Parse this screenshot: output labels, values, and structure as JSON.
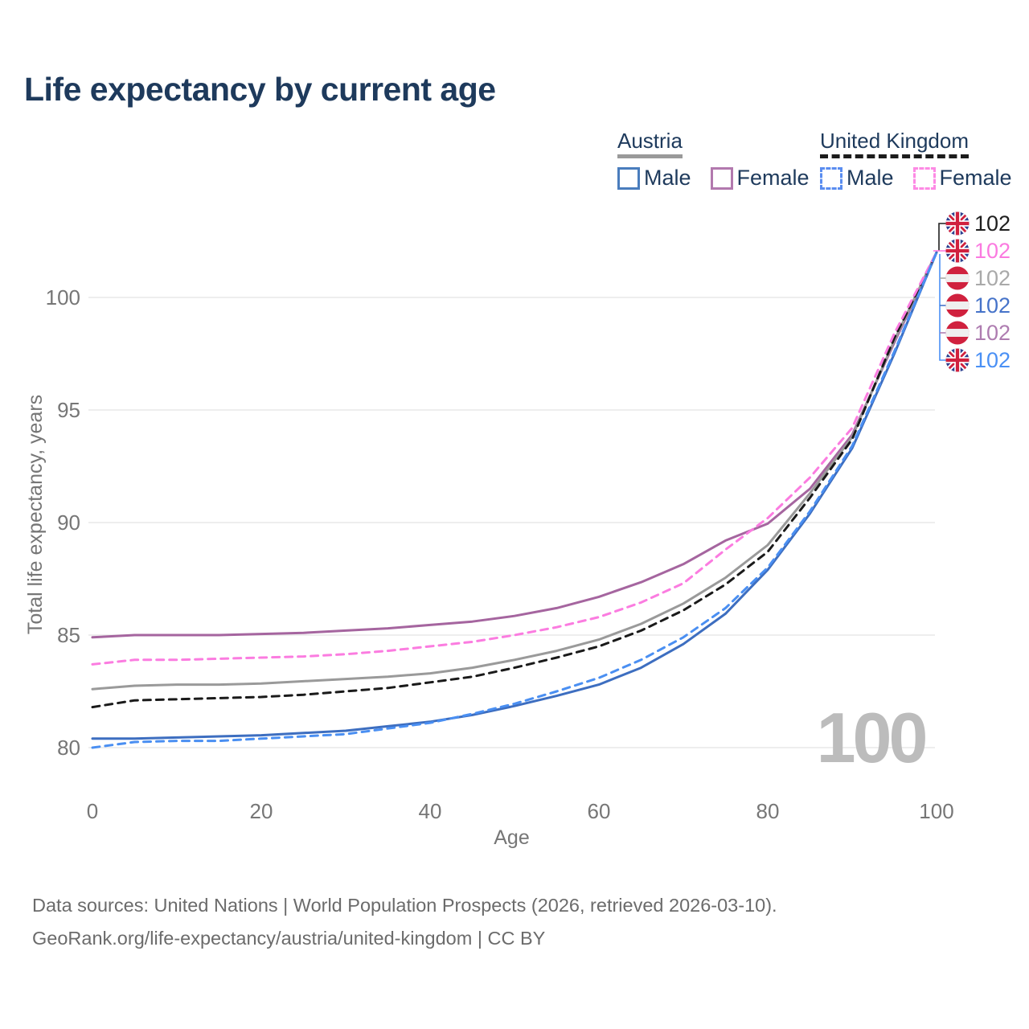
{
  "title": "Life expectancy by current age",
  "legend": {
    "groups": [
      {
        "name": "Austria",
        "line_color": "#9a9a9a",
        "line_style": "solid",
        "items": [
          {
            "label": "Male",
            "color": "#4a7dbd",
            "dashed": false
          },
          {
            "label": "Female",
            "color": "#b279ae",
            "dashed": false
          }
        ]
      },
      {
        "name": "United Kingdom",
        "line_color": "#1c1c1c",
        "line_style": "dashed",
        "items": [
          {
            "label": "Male",
            "color": "#5a8df0",
            "dashed": true
          },
          {
            "label": "Female",
            "color": "#fd8ae4",
            "dashed": true
          }
        ]
      }
    ]
  },
  "chart_data": {
    "type": "line",
    "title": "Life expectancy by current age",
    "xlabel": "Age",
    "ylabel": "Total life expectancy, years",
    "xticks": [
      0,
      20,
      40,
      60,
      80,
      100
    ],
    "yticks": [
      80,
      85,
      90,
      95,
      100
    ],
    "xlim": [
      0,
      100
    ],
    "ylim": [
      79.3,
      103.2
    ],
    "grid": "horizontal",
    "grid_color": "#e9e9e9",
    "tick_color": "#767676",
    "watermark": "100",
    "watermark_color": "#bcbcbc",
    "x": [
      0,
      5,
      10,
      15,
      20,
      25,
      30,
      35,
      40,
      45,
      50,
      55,
      60,
      65,
      70,
      75,
      80,
      85,
      90,
      95,
      100
    ],
    "series": [
      {
        "name": "Austria Female",
        "country": "austria",
        "color": "#a5659f",
        "dashed": false,
        "values": [
          84.9,
          85.0,
          85.0,
          85.0,
          85.05,
          85.1,
          85.2,
          85.3,
          85.45,
          85.6,
          85.85,
          86.2,
          86.7,
          87.35,
          88.15,
          89.2,
          89.95,
          91.5,
          93.9,
          98.0,
          102
        ]
      },
      {
        "name": "Austria Combined",
        "country": "austria",
        "color": "#9a9a9a",
        "dashed": false,
        "values": [
          82.6,
          82.75,
          82.8,
          82.8,
          82.85,
          82.95,
          83.05,
          83.15,
          83.3,
          83.55,
          83.9,
          84.3,
          84.8,
          85.5,
          86.4,
          87.55,
          89.0,
          91.3,
          93.8,
          98.1,
          102
        ]
      },
      {
        "name": "Austria Male",
        "country": "austria",
        "color": "#3d6ec0",
        "dashed": false,
        "values": [
          80.4,
          80.4,
          80.45,
          80.5,
          80.55,
          80.65,
          80.75,
          80.95,
          81.15,
          81.45,
          81.85,
          82.3,
          82.8,
          83.55,
          84.6,
          85.95,
          87.9,
          90.4,
          93.3,
          97.5,
          102
        ]
      },
      {
        "name": "United Kingdom Combined",
        "country": "uk",
        "color": "#1a1a1a",
        "dashed": true,
        "values": [
          81.8,
          82.1,
          82.15,
          82.2,
          82.25,
          82.35,
          82.5,
          82.65,
          82.9,
          83.15,
          83.55,
          84.0,
          84.5,
          85.2,
          86.1,
          87.25,
          88.7,
          91.1,
          93.7,
          98.2,
          102
        ]
      },
      {
        "name": "United Kingdom Female",
        "country": "uk",
        "color": "#fb7ce0",
        "dashed": true,
        "values": [
          83.7,
          83.9,
          83.9,
          83.95,
          84.0,
          84.05,
          84.15,
          84.3,
          84.5,
          84.7,
          85.0,
          85.35,
          85.8,
          86.45,
          87.3,
          88.8,
          90.2,
          92.0,
          94.2,
          98.4,
          102
        ]
      },
      {
        "name": "United Kingdom Male",
        "country": "uk",
        "color": "#4a8ff2",
        "dashed": true,
        "values": [
          80.0,
          80.25,
          80.3,
          80.3,
          80.4,
          80.5,
          80.6,
          80.85,
          81.1,
          81.5,
          81.95,
          82.5,
          83.1,
          83.9,
          84.9,
          86.2,
          88.0,
          90.5,
          93.4,
          97.6,
          102
        ]
      }
    ],
    "end_labels": [
      {
        "flag": "uk",
        "color": "#1f1f1f",
        "value": "102"
      },
      {
        "flag": "uk",
        "color": "#fb7ae0",
        "value": "102"
      },
      {
        "flag": "austria",
        "color": "#a9a9a9",
        "value": "102"
      },
      {
        "flag": "austria",
        "color": "#4673c9",
        "value": "102"
      },
      {
        "flag": "austria",
        "color": "#ae7cb0",
        "value": "102"
      },
      {
        "flag": "uk",
        "color": "#4a90f5",
        "value": "102"
      }
    ]
  },
  "footer": {
    "line1": "Data sources: United Nations | World Population Prospects (2026, retrieved 2026-03-10).",
    "line2": "GeoRank.org/life-expectancy/austria/united-kingdom | CC BY"
  }
}
